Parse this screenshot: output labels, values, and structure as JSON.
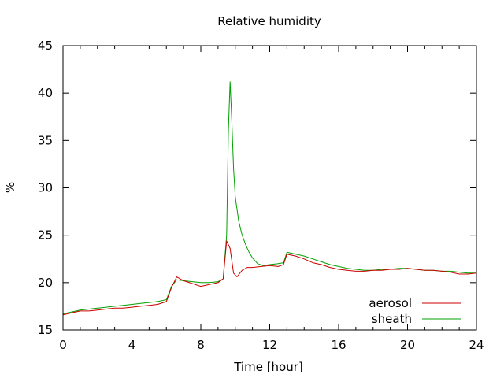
{
  "chart_data": {
    "type": "line",
    "title": "Relative humidity",
    "xlabel": "Time [hour]",
    "ylabel": "%",
    "xlim": [
      0,
      24
    ],
    "ylim": [
      15,
      45
    ],
    "xticks": [
      0,
      4,
      8,
      12,
      16,
      20,
      24
    ],
    "yticks": [
      15,
      20,
      25,
      30,
      35,
      40,
      45
    ],
    "grid": false,
    "legend_position": "bottom-right",
    "series": [
      {
        "name": "aerosol",
        "color": "#cc0000",
        "x": [
          0,
          0.5,
          1,
          1.5,
          2,
          2.5,
          3,
          3.5,
          4,
          4.5,
          5,
          5.5,
          6,
          6.3,
          6.6,
          7,
          7.5,
          8,
          8.5,
          9,
          9.3,
          9.5,
          9.7,
          9.9,
          10.1,
          10.4,
          10.7,
          11,
          11.5,
          12,
          12.5,
          12.8,
          13,
          13.5,
          14,
          14.5,
          15,
          15.5,
          16,
          16.5,
          17,
          17.5,
          18,
          18.5,
          19,
          19.5,
          20,
          20.5,
          21,
          21.5,
          22,
          22.5,
          23,
          23.5,
          24
        ],
        "y": [
          16.6,
          16.8,
          17.0,
          17.0,
          17.1,
          17.2,
          17.3,
          17.3,
          17.4,
          17.5,
          17.6,
          17.7,
          18.0,
          19.5,
          20.6,
          20.2,
          19.9,
          19.6,
          19.8,
          20.0,
          20.4,
          24.4,
          23.6,
          21.0,
          20.6,
          21.3,
          21.6,
          21.6,
          21.7,
          21.8,
          21.7,
          21.9,
          23.0,
          22.8,
          22.5,
          22.1,
          21.9,
          21.6,
          21.4,
          21.3,
          21.2,
          21.2,
          21.3,
          21.3,
          21.4,
          21.4,
          21.5,
          21.4,
          21.3,
          21.3,
          21.2,
          21.1,
          20.9,
          20.9,
          21.0
        ]
      },
      {
        "name": "sheath",
        "color": "#00a000",
        "x": [
          0,
          0.5,
          1,
          1.5,
          2,
          2.5,
          3,
          3.5,
          4,
          4.5,
          5,
          5.5,
          6,
          6.3,
          6.6,
          7,
          7.5,
          8,
          8.5,
          9,
          9.3,
          9.5,
          9.6,
          9.7,
          9.8,
          9.9,
          10,
          10.2,
          10.4,
          10.6,
          10.8,
          11,
          11.3,
          11.6,
          12,
          12.5,
          12.8,
          13,
          13.5,
          14,
          14.5,
          15,
          15.5,
          16,
          16.5,
          17,
          17.5,
          18,
          18.5,
          19,
          19.5,
          20,
          20.5,
          21,
          21.5,
          22,
          22.5,
          23,
          23.5,
          24
        ],
        "y": [
          16.7,
          16.9,
          17.1,
          17.2,
          17.3,
          17.4,
          17.5,
          17.6,
          17.7,
          17.8,
          17.9,
          18.0,
          18.2,
          19.6,
          20.3,
          20.2,
          20.1,
          20.0,
          20.0,
          20.1,
          20.4,
          25.0,
          36.0,
          41.2,
          37.0,
          32.0,
          29.0,
          26.5,
          25.0,
          24.0,
          23.2,
          22.6,
          22.0,
          21.8,
          21.9,
          22.0,
          22.1,
          23.2,
          23.0,
          22.8,
          22.5,
          22.2,
          21.9,
          21.7,
          21.5,
          21.4,
          21.3,
          21.3,
          21.4,
          21.4,
          21.5,
          21.5,
          21.4,
          21.3,
          21.3,
          21.2,
          21.2,
          21.1,
          21.0,
          21.0
        ]
      }
    ]
  }
}
